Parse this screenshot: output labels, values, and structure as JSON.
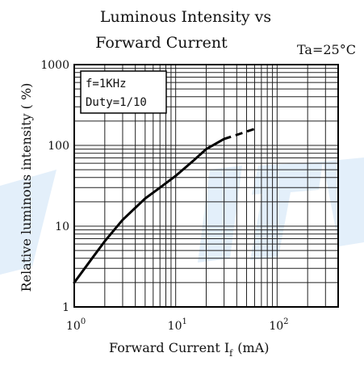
{
  "chart_data": {
    "type": "line",
    "title_lines": [
      "Luminous Intensity vs",
      "Forward Current"
    ],
    "condition": "Ta=25°C",
    "xlabel": "Forward Current  I",
    "xlabel_sub": "f",
    "xlabel_unit": "(mA)",
    "ylabel": "Relative luminous intensity ( %)",
    "x_scale": "log",
    "y_scale": "log",
    "xlim": [
      1,
      400
    ],
    "ylim": [
      1,
      1000
    ],
    "grid": true,
    "legend_placement": "top-left",
    "y_ticks": [
      {
        "value": 1,
        "label": "1"
      },
      {
        "value": 10,
        "label": "10"
      },
      {
        "value": 100,
        "label": "100"
      },
      {
        "value": 1000,
        "label": "1000"
      }
    ],
    "x_ticks": [
      {
        "value": 1,
        "base": "10",
        "exp": "0"
      },
      {
        "value": 10,
        "base": "10",
        "exp": "1"
      },
      {
        "value": 100,
        "base": "10",
        "exp": "2"
      }
    ],
    "legend_box": [
      "f=1KHz",
      "Duty=1/10"
    ],
    "series": [
      {
        "style": "solid",
        "points": [
          [
            1,
            2
          ],
          [
            1.5,
            4
          ],
          [
            2,
            6.5
          ],
          [
            3,
            12
          ],
          [
            5,
            22
          ],
          [
            7,
            30
          ],
          [
            10,
            42
          ],
          [
            15,
            65
          ],
          [
            20,
            90
          ],
          [
            30,
            120
          ]
        ]
      },
      {
        "style": "dashed",
        "points": [
          [
            30,
            120
          ],
          [
            40,
            135
          ],
          [
            60,
            160
          ]
        ]
      }
    ]
  }
}
